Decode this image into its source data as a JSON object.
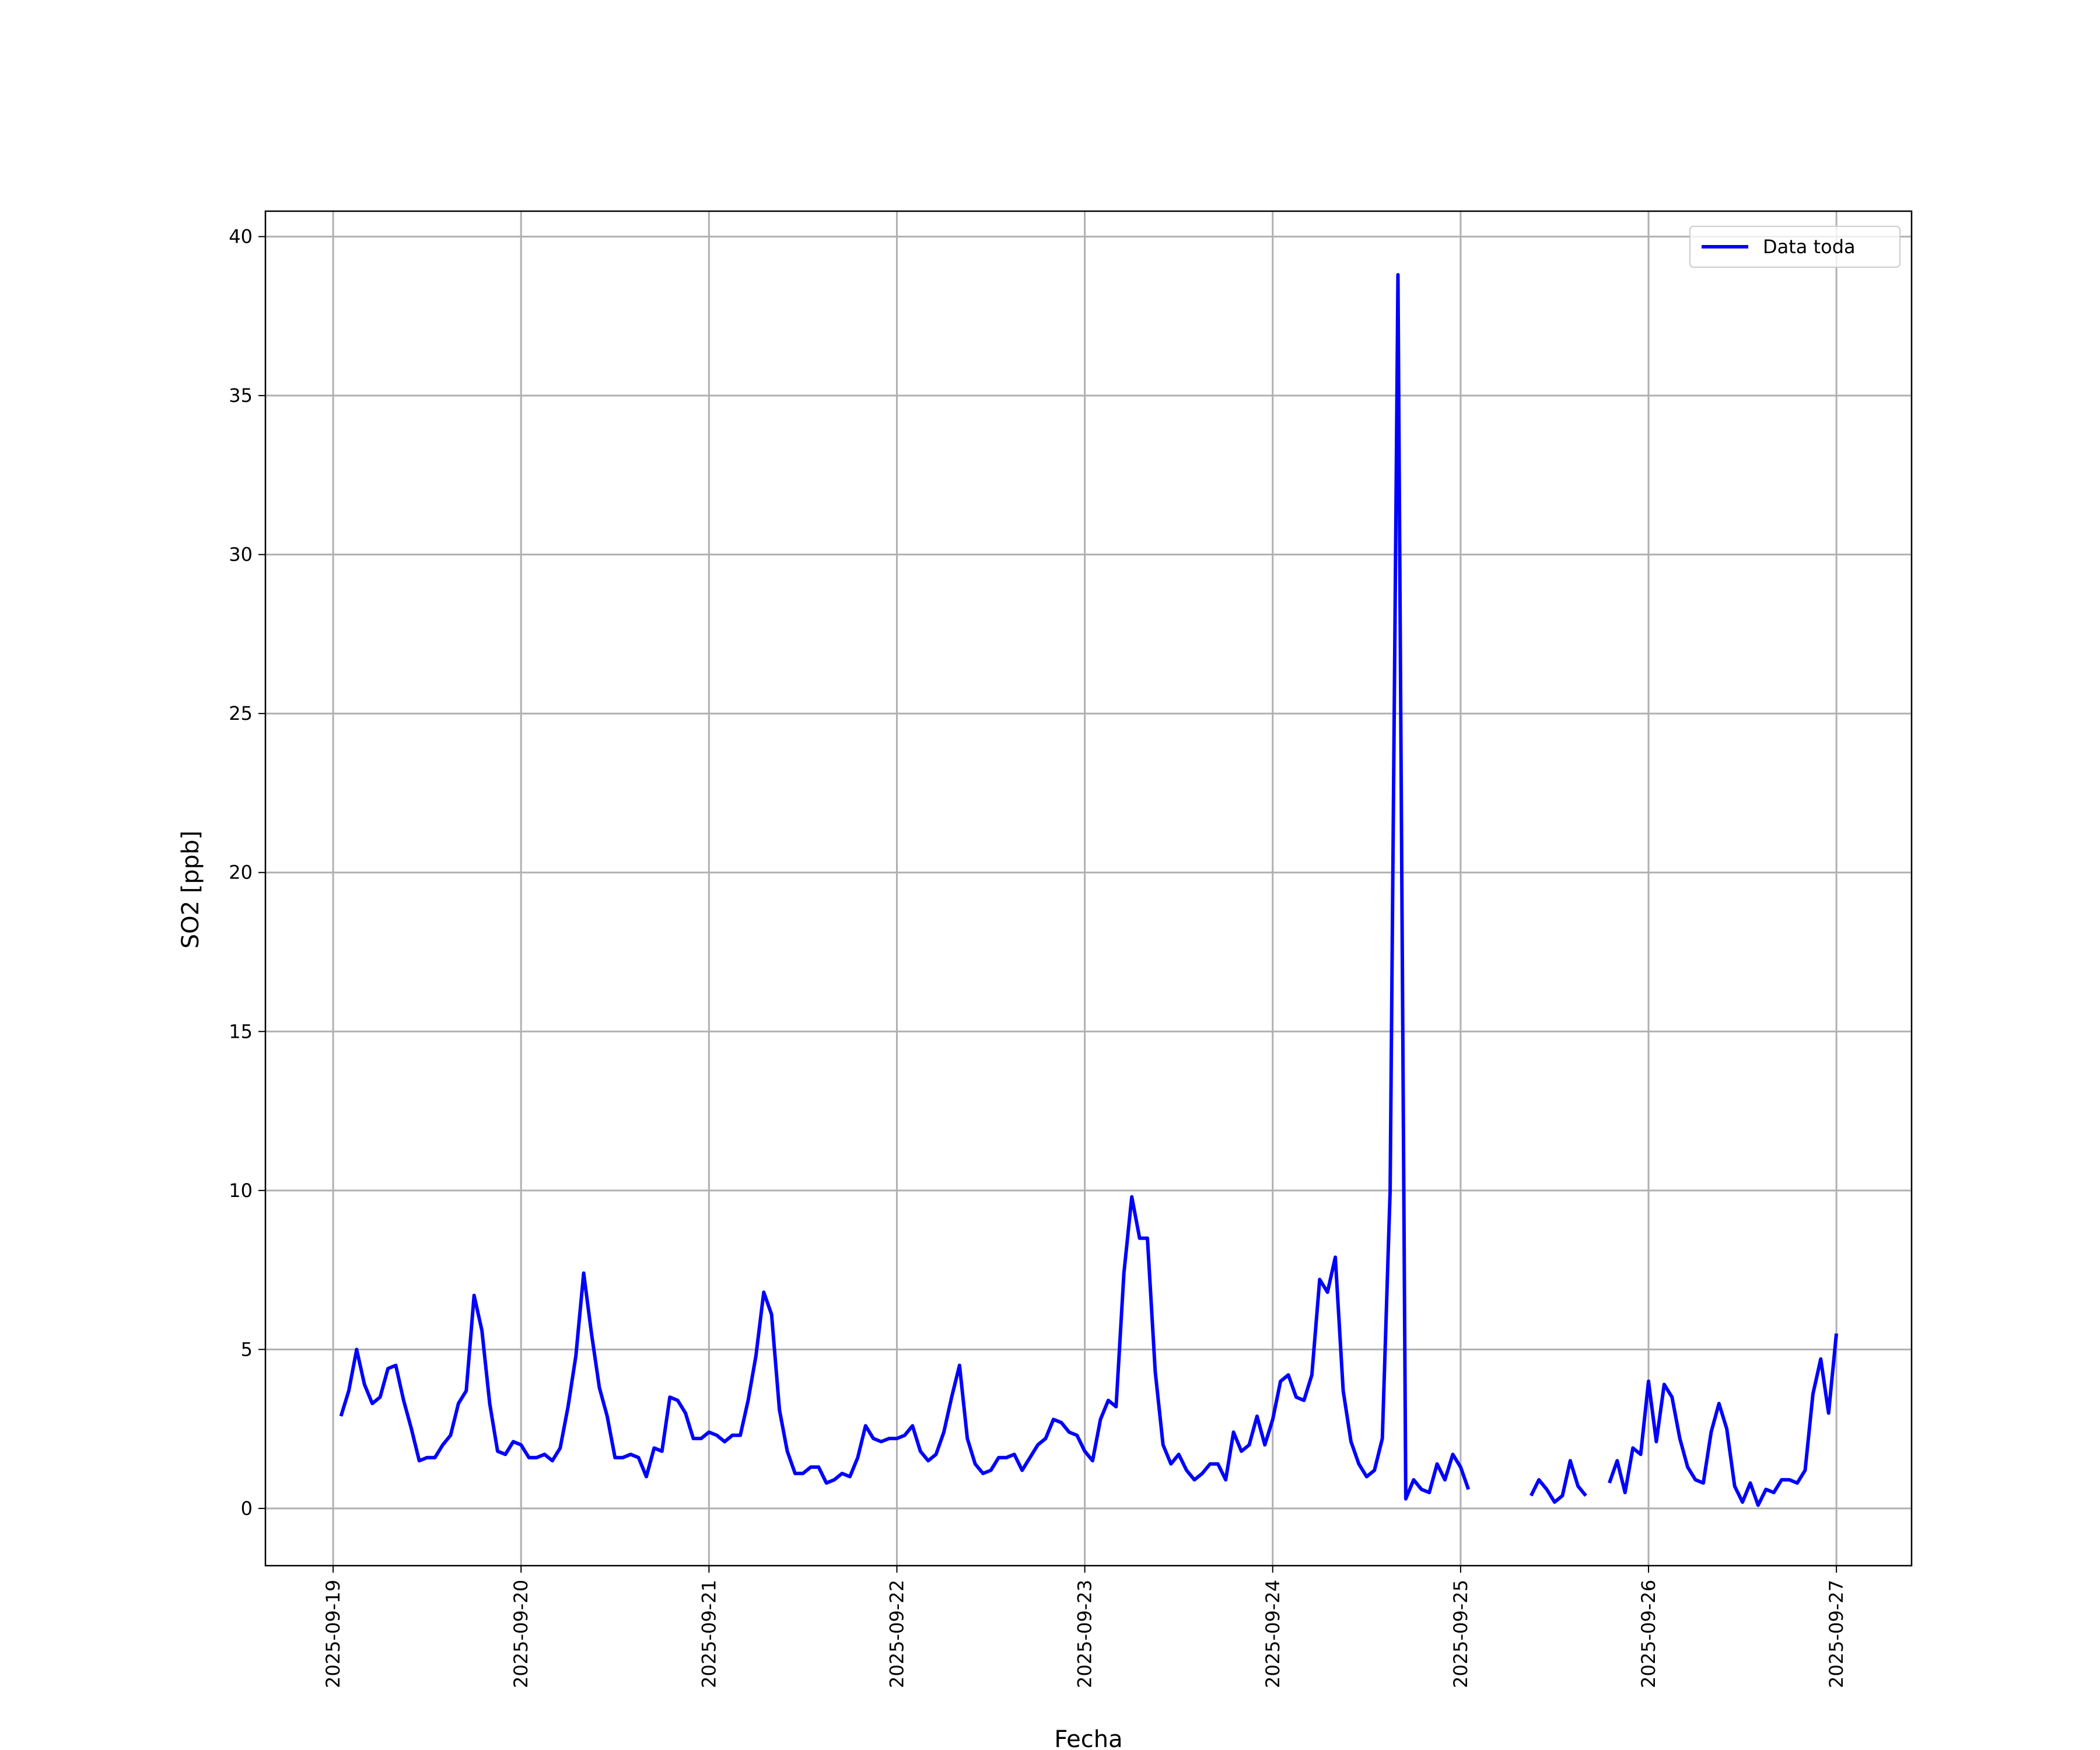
{
  "chart_data": {
    "type": "line",
    "x_label": "Fecha",
    "y_label": "SO2 [ppb]",
    "x": [
      "2025-09-19 01:00",
      "2025-09-19 02:00",
      "2025-09-19 03:00",
      "2025-09-19 04:00",
      "2025-09-19 05:00",
      "2025-09-19 06:00",
      "2025-09-19 07:00",
      "2025-09-19 08:00",
      "2025-09-19 09:00",
      "2025-09-19 10:00",
      "2025-09-19 11:00",
      "2025-09-19 12:00",
      "2025-09-19 13:00",
      "2025-09-19 14:00",
      "2025-09-19 15:00",
      "2025-09-19 16:00",
      "2025-09-19 17:00",
      "2025-09-19 18:00",
      "2025-09-19 19:00",
      "2025-09-19 20:00",
      "2025-09-19 21:00",
      "2025-09-19 22:00",
      "2025-09-19 23:00",
      "2025-09-20 00:00",
      "2025-09-20 01:00",
      "2025-09-20 02:00",
      "2025-09-20 03:00",
      "2025-09-20 04:00",
      "2025-09-20 05:00",
      "2025-09-20 06:00",
      "2025-09-20 07:00",
      "2025-09-20 08:00",
      "2025-09-20 09:00",
      "2025-09-20 10:00",
      "2025-09-20 11:00",
      "2025-09-20 12:00",
      "2025-09-20 13:00",
      "2025-09-20 14:00",
      "2025-09-20 15:00",
      "2025-09-20 16:00",
      "2025-09-20 17:00",
      "2025-09-20 18:00",
      "2025-09-20 19:00",
      "2025-09-20 20:00",
      "2025-09-20 21:00",
      "2025-09-20 22:00",
      "2025-09-20 23:00",
      "2025-09-21 00:00",
      "2025-09-21 01:00",
      "2025-09-21 02:00",
      "2025-09-21 03:00",
      "2025-09-21 04:00",
      "2025-09-21 05:00",
      "2025-09-21 06:00",
      "2025-09-21 07:00",
      "2025-09-21 08:00",
      "2025-09-21 09:00",
      "2025-09-21 10:00",
      "2025-09-21 11:00",
      "2025-09-21 12:00",
      "2025-09-21 13:00",
      "2025-09-21 14:00",
      "2025-09-21 15:00",
      "2025-09-21 16:00",
      "2025-09-21 17:00",
      "2025-09-21 18:00",
      "2025-09-21 19:00",
      "2025-09-21 20:00",
      "2025-09-21 21:00",
      "2025-09-21 22:00",
      "2025-09-21 23:00",
      "2025-09-22 00:00",
      "2025-09-22 01:00",
      "2025-09-22 02:00",
      "2025-09-22 03:00",
      "2025-09-22 04:00",
      "2025-09-22 05:00",
      "2025-09-22 06:00",
      "2025-09-22 07:00",
      "2025-09-22 08:00",
      "2025-09-22 09:00",
      "2025-09-22 10:00",
      "2025-09-22 11:00",
      "2025-09-22 12:00",
      "2025-09-22 13:00",
      "2025-09-22 14:00",
      "2025-09-22 15:00",
      "2025-09-22 16:00",
      "2025-09-22 17:00",
      "2025-09-22 18:00",
      "2025-09-22 19:00",
      "2025-09-22 20:00",
      "2025-09-22 21:00",
      "2025-09-22 22:00",
      "2025-09-22 23:00",
      "2025-09-23 00:00",
      "2025-09-23 01:00",
      "2025-09-23 02:00",
      "2025-09-23 03:00",
      "2025-09-23 04:00",
      "2025-09-23 05:00",
      "2025-09-23 06:00",
      "2025-09-23 07:00",
      "2025-09-23 08:00",
      "2025-09-23 09:00",
      "2025-09-23 10:00",
      "2025-09-23 11:00",
      "2025-09-23 12:00",
      "2025-09-23 13:00",
      "2025-09-23 14:00",
      "2025-09-23 15:00",
      "2025-09-23 16:00",
      "2025-09-23 17:00",
      "2025-09-23 18:00",
      "2025-09-23 19:00",
      "2025-09-23 20:00",
      "2025-09-23 21:00",
      "2025-09-23 22:00",
      "2025-09-23 23:00",
      "2025-09-24 00:00",
      "2025-09-24 01:00",
      "2025-09-24 02:00",
      "2025-09-24 03:00",
      "2025-09-24 04:00",
      "2025-09-24 05:00",
      "2025-09-24 06:00",
      "2025-09-24 07:00",
      "2025-09-24 08:00",
      "2025-09-24 09:00",
      "2025-09-24 10:00",
      "2025-09-24 11:00",
      "2025-09-24 12:00",
      "2025-09-24 13:00",
      "2025-09-24 14:00",
      "2025-09-24 15:00",
      "2025-09-24 16:00",
      "2025-09-24 17:00",
      "2025-09-24 18:00",
      "2025-09-24 19:00",
      "2025-09-24 20:00",
      "2025-09-24 21:00",
      "2025-09-24 22:00",
      "2025-09-24 23:00",
      "2025-09-25 00:00",
      "2025-09-25 01:00",
      "2025-09-25 02:00",
      "2025-09-25 03:00",
      "2025-09-25 04:00",
      "2025-09-25 05:00",
      "2025-09-25 06:00",
      "2025-09-25 07:00",
      "2025-09-25 08:00",
      "2025-09-25 09:00",
      "2025-09-25 10:00",
      "2025-09-25 11:00",
      "2025-09-25 12:00",
      "2025-09-25 13:00",
      "2025-09-25 14:00",
      "2025-09-25 15:00",
      "2025-09-25 16:00",
      "2025-09-25 17:00",
      "2025-09-25 18:00",
      "2025-09-25 19:00",
      "2025-09-25 20:00",
      "2025-09-25 21:00",
      "2025-09-25 22:00",
      "2025-09-25 23:00",
      "2025-09-26 00:00",
      "2025-09-26 01:00",
      "2025-09-26 02:00",
      "2025-09-26 03:00",
      "2025-09-26 04:00",
      "2025-09-26 05:00",
      "2025-09-26 06:00",
      "2025-09-26 07:00",
      "2025-09-26 08:00",
      "2025-09-26 09:00",
      "2025-09-26 10:00",
      "2025-09-26 11:00",
      "2025-09-26 12:00",
      "2025-09-26 13:00",
      "2025-09-26 14:00",
      "2025-09-26 15:00",
      "2025-09-26 16:00",
      "2025-09-26 17:00",
      "2025-09-26 18:00",
      "2025-09-26 19:00",
      "2025-09-26 20:00",
      "2025-09-26 21:00",
      "2025-09-26 22:00",
      "2025-09-26 23:00",
      "2025-09-27 00:00"
    ],
    "series": [
      {
        "name": "Data toda",
        "color": "#0000ff",
        "values": [
          2.9,
          3.7,
          5.0,
          3.9,
          3.3,
          3.5,
          4.4,
          4.5,
          3.4,
          2.5,
          1.5,
          1.6,
          1.6,
          2.0,
          2.3,
          3.3,
          3.7,
          6.7,
          5.6,
          3.3,
          1.8,
          1.7,
          2.1,
          2.0,
          1.6,
          1.6,
          1.7,
          1.5,
          1.9,
          3.2,
          4.8,
          7.4,
          5.5,
          3.8,
          2.9,
          1.6,
          1.6,
          1.7,
          1.6,
          1.0,
          1.9,
          1.8,
          3.5,
          3.4,
          3.0,
          2.2,
          2.2,
          2.4,
          2.3,
          2.1,
          2.3,
          2.3,
          3.4,
          4.8,
          6.8,
          6.1,
          3.1,
          1.8,
          1.1,
          1.1,
          1.3,
          1.3,
          0.8,
          0.9,
          1.1,
          1.0,
          1.6,
          2.6,
          2.2,
          2.1,
          2.2,
          2.2,
          2.3,
          2.6,
          1.8,
          1.5,
          1.7,
          2.4,
          3.5,
          4.5,
          2.2,
          1.4,
          1.1,
          1.2,
          1.6,
          1.6,
          1.7,
          1.2,
          1.6,
          2.0,
          2.2,
          2.8,
          2.7,
          2.4,
          2.3,
          1.8,
          1.5,
          2.8,
          3.4,
          3.2,
          7.4,
          9.8,
          8.5,
          8.5,
          4.3,
          2.0,
          1.4,
          1.7,
          1.2,
          0.9,
          1.1,
          1.4,
          1.4,
          0.9,
          2.4,
          1.8,
          2.0,
          2.9,
          2.0,
          2.8,
          4.0,
          4.2,
          3.5,
          3.4,
          4.2,
          7.2,
          6.8,
          7.9,
          3.7,
          2.1,
          1.4,
          1.0,
          1.2,
          2.2,
          10.0,
          38.8,
          0.3,
          0.9,
          0.6,
          0.5,
          1.4,
          0.9,
          1.7,
          1.3,
          0.6,
          null,
          null,
          null,
          null,
          null,
          null,
          null,
          0.4,
          0.9,
          0.6,
          0.2,
          0.4,
          1.5,
          0.7,
          0.4,
          null,
          null,
          0.8,
          1.5,
          0.5,
          1.9,
          1.7,
          4.0,
          2.1,
          3.9,
          3.5,
          2.2,
          1.3,
          0.9,
          0.8,
          2.4,
          3.3,
          2.5,
          0.7,
          0.2,
          0.8,
          0.1,
          0.6,
          0.5,
          0.9,
          0.9,
          0.8,
          1.2,
          3.6,
          4.7,
          3.0,
          5.5
        ]
      }
    ],
    "xlim": [
      "2025-09-18 15:21",
      "2025-09-27 09:36"
    ],
    "xticks": [
      "2025-09-19",
      "2025-09-20",
      "2025-09-21",
      "2025-09-22",
      "2025-09-23",
      "2025-09-24",
      "2025-09-25",
      "2025-09-26",
      "2025-09-27"
    ],
    "ylim": [
      -1.8,
      40.8
    ],
    "yticks": [
      0,
      5,
      10,
      15,
      20,
      25,
      30,
      35,
      40
    ],
    "grid": true,
    "legend": "upper right"
  }
}
